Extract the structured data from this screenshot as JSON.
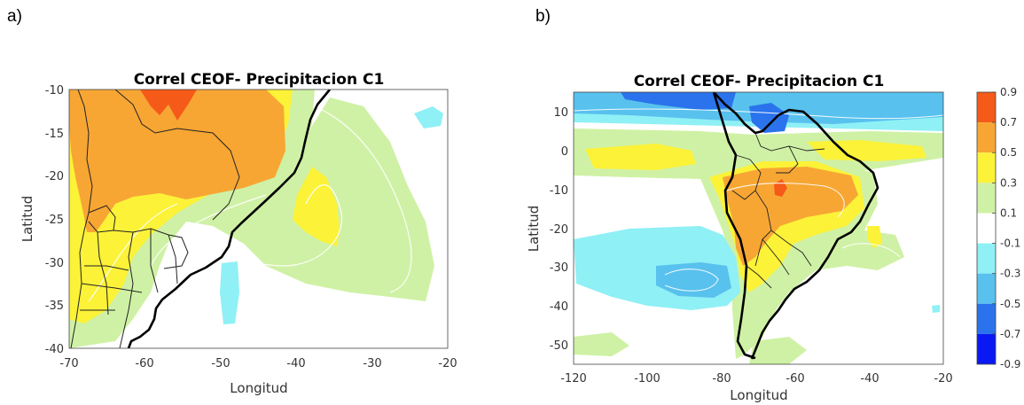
{
  "panel_letters": [
    "a)",
    "b)"
  ],
  "chart_data": [
    {
      "type": "heatmap",
      "title": "Correl CEOF- Precipitacion C1",
      "xlabel": "Longitud",
      "ylabel": "Latitud",
      "xlim": [
        -70,
        -20
      ],
      "ylim": [
        -40,
        -10
      ],
      "xticks": [
        -70,
        -60,
        -50,
        -40,
        -30,
        -20
      ],
      "yticks": [
        -10,
        -15,
        -20,
        -25,
        -30,
        -35,
        -40
      ],
      "contour_levels": [
        -0.9,
        -0.7,
        -0.5,
        -0.3,
        -0.1,
        0.1,
        0.3,
        0.5,
        0.7,
        0.9
      ]
    },
    {
      "type": "heatmap",
      "title": "Correl CEOF- Precipitacion C1",
      "xlabel": "Longitud",
      "ylabel": "Latitud",
      "xlim": [
        -120,
        -20
      ],
      "ylim": [
        -55,
        15
      ],
      "xticks": [
        -120,
        -100,
        -80,
        -60,
        -40,
        -20
      ],
      "yticks": [
        10,
        0,
        -10,
        -20,
        -30,
        -40,
        -50
      ],
      "colorbar": {
        "levels": [
          0.9,
          0.7,
          0.5,
          0.3,
          0.1,
          -0.1,
          -0.3,
          -0.5,
          -0.7,
          -0.9
        ],
        "colors": [
          "#f55a19",
          "#f7a634",
          "#fcf238",
          "#cff1a5",
          "#ffffff",
          "#8ff0f5",
          "#58c1ee",
          "#2a73ec",
          "#0a19f4"
        ]
      }
    }
  ]
}
